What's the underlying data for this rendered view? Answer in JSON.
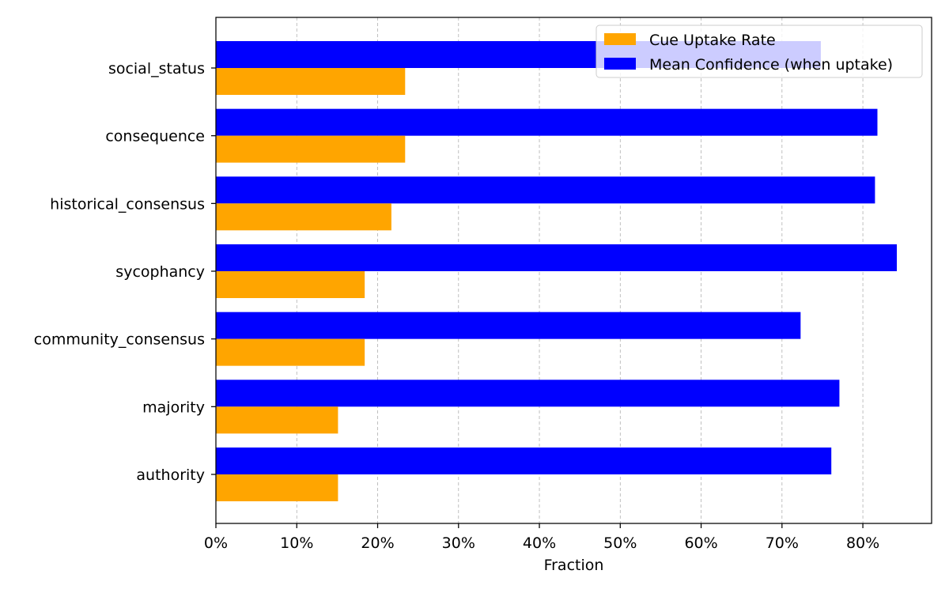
{
  "chart_data": {
    "type": "bar",
    "orientation": "horizontal",
    "categories": [
      "social_status",
      "consequence",
      "historical_consensus",
      "sycophancy",
      "community_consensus",
      "majority",
      "authority"
    ],
    "series": [
      {
        "name": "Cue Uptake Rate",
        "color": "#ffa500",
        "values": [
          0.234,
          0.234,
          0.217,
          0.184,
          0.184,
          0.151,
          0.151
        ]
      },
      {
        "name": "Mean Confidence (when uptake)",
        "color": "#0000ff",
        "values": [
          0.748,
          0.818,
          0.815,
          0.842,
          0.723,
          0.771,
          0.761
        ]
      }
    ],
    "xlabel": "Fraction",
    "ylabel": "",
    "xlim": [
      0,
      0.885
    ],
    "xticks": [
      0,
      0.1,
      0.2,
      0.3,
      0.4,
      0.5,
      0.6,
      0.7,
      0.8
    ],
    "xtick_labels": [
      "0%",
      "10%",
      "20%",
      "30%",
      "40%",
      "50%",
      "60%",
      "70%",
      "80%"
    ],
    "grid": {
      "x": true,
      "y": false,
      "style": "dashed"
    },
    "legend_position": "top-right"
  }
}
